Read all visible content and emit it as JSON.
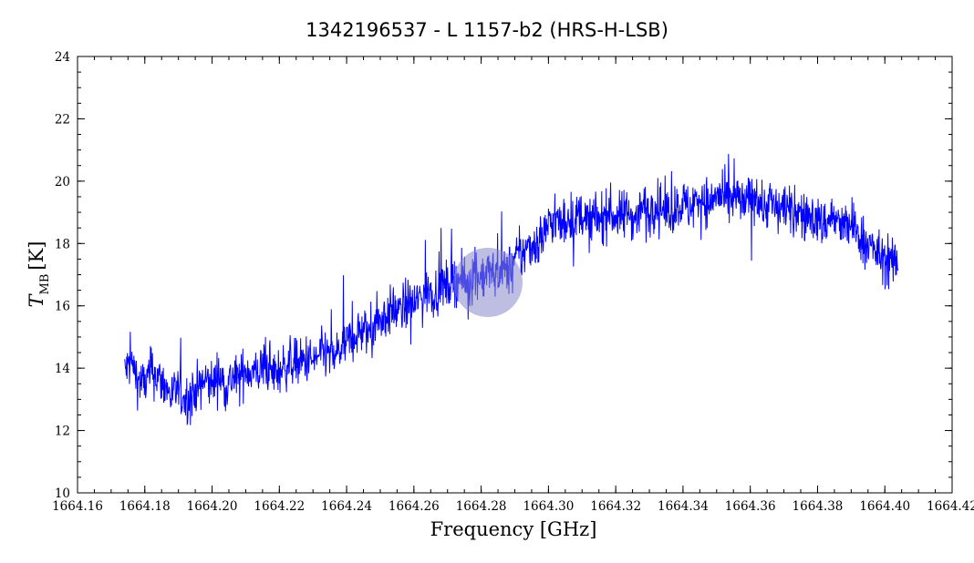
{
  "chart_data": {
    "type": "line",
    "title": "1342196537 - L 1157-b2 (HRS-H-LSB)",
    "xlabel": "Frequency [GHz]",
    "ylabel_main": "T",
    "ylabel_sub": "MB",
    "ylabel_unit": "[K]",
    "xlim": [
      1664.16,
      1664.42
    ],
    "ylim": [
      10,
      24
    ],
    "x_ticks": [
      "1664.16",
      "1664.18",
      "1664.20",
      "1664.22",
      "1664.24",
      "1664.26",
      "1664.28",
      "1664.30",
      "1664.32",
      "1664.34",
      "1664.36",
      "1664.38",
      "1664.40",
      "1664.42"
    ],
    "y_ticks": [
      "10",
      "12",
      "14",
      "16",
      "18",
      "20",
      "22",
      "24"
    ],
    "x_tick_values": [
      1664.16,
      1664.18,
      1664.2,
      1664.22,
      1664.24,
      1664.26,
      1664.28,
      1664.3,
      1664.32,
      1664.34,
      1664.36,
      1664.38,
      1664.4,
      1664.42
    ],
    "y_tick_values": [
      10,
      12,
      14,
      16,
      18,
      20,
      22,
      24
    ],
    "series": [
      {
        "color": "#0000ff",
        "x": [
          1664.174,
          1664.176,
          1664.178,
          1664.18,
          1664.182,
          1664.184,
          1664.186,
          1664.188,
          1664.19,
          1664.192,
          1664.194,
          1664.196,
          1664.198,
          1664.2,
          1664.202,
          1664.204,
          1664.206,
          1664.208,
          1664.21,
          1664.212,
          1664.214,
          1664.216,
          1664.218,
          1664.22,
          1664.222,
          1664.224,
          1664.226,
          1664.228,
          1664.23,
          1664.232,
          1664.234,
          1664.236,
          1664.238,
          1664.24,
          1664.242,
          1664.244,
          1664.246,
          1664.248,
          1664.25,
          1664.252,
          1664.254,
          1664.256,
          1664.258,
          1664.26,
          1664.262,
          1664.264,
          1664.266,
          1664.268,
          1664.27,
          1664.272,
          1664.274,
          1664.276,
          1664.278,
          1664.28,
          1664.282,
          1664.284,
          1664.286,
          1664.288,
          1664.29,
          1664.292,
          1664.294,
          1664.296,
          1664.298,
          1664.3,
          1664.302,
          1664.304,
          1664.306,
          1664.308,
          1664.31,
          1664.312,
          1664.314,
          1664.316,
          1664.318,
          1664.32,
          1664.322,
          1664.324,
          1664.326,
          1664.328,
          1664.33,
          1664.332,
          1664.334,
          1664.336,
          1664.338,
          1664.34,
          1664.342,
          1664.344,
          1664.346,
          1664.348,
          1664.35,
          1664.352,
          1664.354,
          1664.356,
          1664.358,
          1664.36,
          1664.362,
          1664.364,
          1664.366,
          1664.368,
          1664.37,
          1664.372,
          1664.374,
          1664.376,
          1664.378,
          1664.38,
          1664.382,
          1664.384,
          1664.386,
          1664.388,
          1664.39,
          1664.392,
          1664.394,
          1664.396,
          1664.398,
          1664.4,
          1664.402,
          1664.404
        ],
        "y": [
          13.9,
          14.2,
          13.6,
          13.5,
          13.9,
          13.7,
          13.4,
          13.1,
          13.3,
          13.0,
          13.2,
          13.4,
          13.6,
          13.5,
          13.8,
          13.4,
          13.7,
          13.6,
          14.0,
          13.8,
          13.9,
          14.1,
          13.8,
          13.9,
          14.1,
          14.2,
          14.1,
          14.3,
          14.2,
          14.4,
          14.5,
          14.3,
          14.6,
          14.8,
          15.0,
          15.2,
          15.1,
          15.4,
          15.6,
          15.7,
          15.9,
          15.8,
          16.1,
          16.0,
          16.3,
          16.5,
          16.4,
          16.7,
          16.6,
          16.9,
          16.8,
          16.7,
          17.0,
          16.9,
          17.1,
          17.0,
          17.2,
          17.1,
          17.5,
          17.6,
          17.9,
          18.0,
          18.2,
          18.6,
          18.8,
          18.5,
          18.9,
          18.7,
          19.0,
          18.6,
          18.9,
          18.7,
          19.1,
          18.8,
          18.9,
          19.0,
          18.8,
          19.2,
          19.0,
          19.3,
          19.1,
          19.0,
          19.2,
          19.3,
          19.1,
          19.4,
          19.5,
          19.2,
          19.6,
          19.4,
          19.3,
          19.5,
          19.2,
          19.4,
          19.6,
          19.1,
          19.4,
          19.0,
          19.3,
          18.9,
          19.1,
          18.8,
          18.9,
          18.7,
          18.6,
          18.9,
          18.7,
          18.5,
          18.6,
          18.3,
          18.1,
          17.9,
          17.6,
          17.5,
          17.3,
          17.4
        ]
      }
    ]
  }
}
